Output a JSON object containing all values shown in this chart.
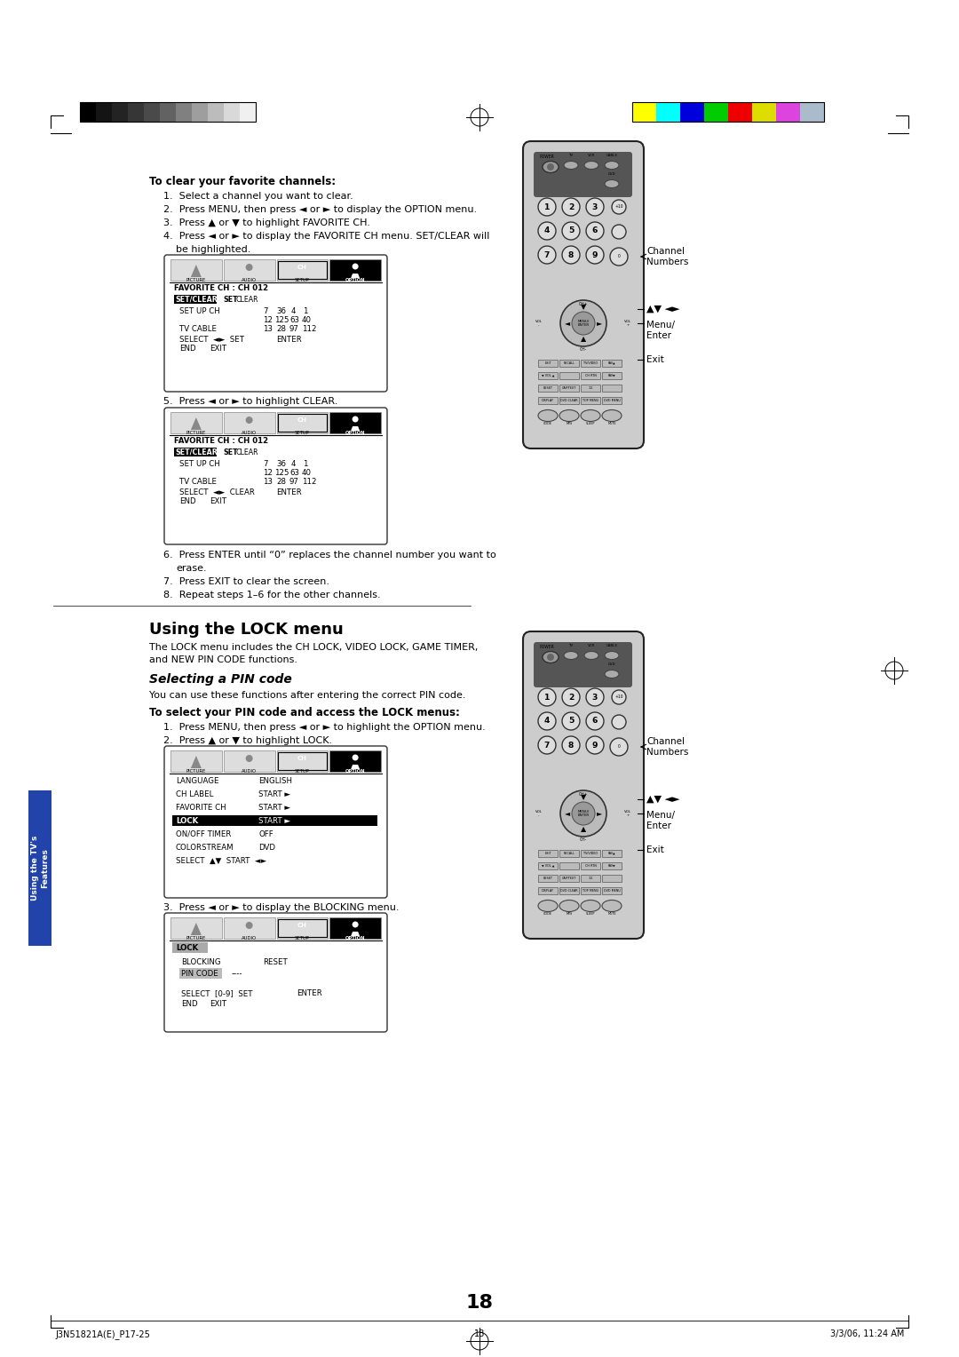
{
  "page_number": "18",
  "bg_color": "#ffffff",
  "footer_left": "J3N51821A(E)_P17-25",
  "footer_center": "18",
  "footer_right": "3/3/06, 11:24 AM",
  "section_title": "Using the LOCK menu",
  "section_desc1": "The LOCK menu includes the CH LOCK, VIDEO LOCK, GAME TIMER,",
  "section_desc2": "and NEW PIN CODE functions.",
  "subsection_title": "Selecting a PIN code",
  "subsection_desc": "You can use these functions after entering the correct PIN code.",
  "bold_header1": "To clear your favorite channels:",
  "bold_header2": "To select your PIN code and access the LOCK menus:",
  "gray_colors": [
    "#000000",
    "#141414",
    "#232323",
    "#363636",
    "#4a4a4a",
    "#626262",
    "#808080",
    "#9e9e9e",
    "#bcbcbc",
    "#d9d9d9",
    "#f0f0f0"
  ],
  "color_bars": [
    "#ffff00",
    "#00ffff",
    "#0000dd",
    "#00cc00",
    "#ee0000",
    "#dddd00",
    "#dd44dd",
    "#aabbcc"
  ],
  "sidebar_color": "#2244aa",
  "sidebar_text": "Using the TV's\nFeatures"
}
